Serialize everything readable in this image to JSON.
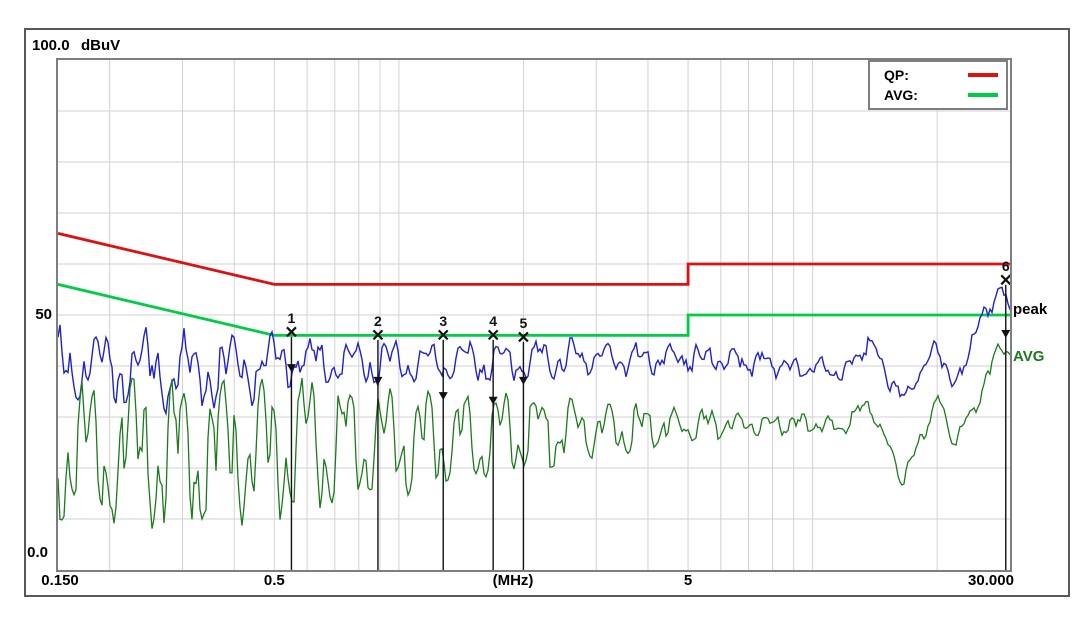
{
  "window": {
    "title": "EMI conducted emission measurement plot"
  },
  "header": {
    "y_max_label": "100.0",
    "unit_label": "dBuV"
  },
  "legend": {
    "items": [
      {
        "label": "QP:",
        "color": "#dd1111"
      },
      {
        "label": "AVG:",
        "color": "#00cc44"
      }
    ]
  },
  "side_labels": {
    "peak": {
      "text": "peak",
      "color": "#000000"
    },
    "avg": {
      "text": "AVG",
      "color": "#1b7a1b"
    }
  },
  "chart_data": {
    "type": "line",
    "title": "",
    "xlabel": "(MHz)",
    "ylabel": "dBuV",
    "x_axis": {
      "scale": "log",
      "min_mhz": 0.15,
      "max_mhz": 30,
      "tick_labels": [
        {
          "f": 0.15,
          "label": "0.150"
        },
        {
          "f": 0.5,
          "label": "0.5"
        },
        {
          "f": 5,
          "label": "5"
        },
        {
          "f": 30,
          "label": "30.000"
        }
      ],
      "unit_label": "(MHz)",
      "gridlines_mhz": [
        0.2,
        0.3,
        0.4,
        0.5,
        0.6,
        0.7,
        0.8,
        0.9,
        1,
        2,
        3,
        4,
        5,
        6,
        7,
        8,
        9,
        10,
        20
      ]
    },
    "y_axis": {
      "min_db": 0,
      "max_db": 100,
      "tick_labels": [
        {
          "db": 100,
          "label": "100.0"
        },
        {
          "db": 50,
          "label": "50"
        },
        {
          "db": 0,
          "label": "0.0"
        }
      ],
      "gridlines_db": [
        10,
        20,
        30,
        40,
        50,
        60,
        70,
        80,
        90
      ]
    },
    "grid_color": "#d2d2d2",
    "limit_lines": [
      {
        "name": "QP limit",
        "color": "#dd1111",
        "points_mhz_db": [
          [
            0.15,
            66
          ],
          [
            0.5,
            56
          ],
          [
            5,
            56
          ],
          [
            5,
            60
          ],
          [
            30,
            60
          ]
        ]
      },
      {
        "name": "AVG limit",
        "color": "#00cc44",
        "points_mhz_db": [
          [
            0.15,
            56
          ],
          [
            0.5,
            46
          ],
          [
            5,
            46
          ],
          [
            5,
            50
          ],
          [
            30,
            50
          ]
        ]
      }
    ],
    "traces": [
      {
        "name": "peak",
        "color": "#2020cc",
        "width": 1.4,
        "envelope_f_center_amp": [
          [
            0.15,
            41,
            7
          ],
          [
            0.25,
            38.5,
            8.5
          ],
          [
            0.4,
            39,
            7.5
          ],
          [
            0.55,
            41,
            5
          ],
          [
            1,
            40.5,
            4.5
          ],
          [
            2,
            41,
            4
          ],
          [
            3.5,
            41.5,
            3.2
          ],
          [
            5,
            41.5,
            2.6
          ],
          [
            7,
            41,
            2.4
          ],
          [
            10,
            39.5,
            2.0
          ],
          [
            12,
            38.5,
            1.9
          ],
          [
            13.6,
            45,
            1.8
          ],
          [
            16.6,
            33,
            1.5
          ],
          [
            20,
            44,
            1.6
          ],
          [
            22,
            35.5,
            1.8
          ],
          [
            24.5,
            46,
            1.5
          ],
          [
            28.5,
            55.5,
            1.2
          ],
          [
            30,
            50.5,
            1
          ]
        ],
        "gen": {
          "seed": 7,
          "phase1": 1.7,
          "phase2": 0.4,
          "p1_start": 46,
          "p1_end": 24,
          "p2": 12.5,
          "w1": 0.6,
          "w2": 0.42,
          "jitter": 0.22,
          "sharp": 0.9,
          "fuzz": 0.85
        }
      },
      {
        "name": "AVG",
        "color": "#1b7a1b",
        "width": 1.3,
        "envelope_f_center_amp": [
          [
            0.15,
            24,
            13
          ],
          [
            0.3,
            22.5,
            14
          ],
          [
            0.5,
            24,
            13.5
          ],
          [
            0.9,
            25,
            10.5
          ],
          [
            1.4,
            25.5,
            9
          ],
          [
            2,
            27,
            8
          ],
          [
            3,
            27.5,
            5.5
          ],
          [
            5,
            28.2,
            3.2
          ],
          [
            7,
            28.6,
            2
          ],
          [
            10,
            28.5,
            1.6
          ],
          [
            12,
            28.3,
            1.5
          ],
          [
            13.6,
            33,
            1.4
          ],
          [
            16.6,
            17.5,
            1.4
          ],
          [
            20,
            33.5,
            1.5
          ],
          [
            22,
            25.5,
            1.6
          ],
          [
            24.5,
            31,
            1.5
          ],
          [
            28.5,
            44.5,
            1.2
          ],
          [
            30,
            42,
            1
          ]
        ],
        "gen": {
          "seed": 13,
          "phase1": 3.6,
          "phase2": 2.0,
          "p1_start": 47,
          "p1_end": 25,
          "p2": 12.9,
          "w1": 0.66,
          "w2": 0.48,
          "jitter": 0.22,
          "sharp": 0.72,
          "fuzz": 0.55
        }
      }
    ],
    "markers": [
      {
        "label": "1",
        "freq_mhz": 0.55,
        "peak_dbuv": 46.7,
        "avg_dbuv": 38.8
      },
      {
        "label": "2",
        "freq_mhz": 0.89,
        "peak_dbuv": 46.1,
        "avg_dbuv": 36.3
      },
      {
        "label": "3",
        "freq_mhz": 1.28,
        "peak_dbuv": 46.1,
        "avg_dbuv": 33.3
      },
      {
        "label": "4",
        "freq_mhz": 1.69,
        "peak_dbuv": 46.1,
        "avg_dbuv": 32.4
      },
      {
        "label": "5",
        "freq_mhz": 2.0,
        "peak_dbuv": 45.7,
        "avg_dbuv": 36.3
      },
      {
        "label": "6",
        "freq_mhz": 29.3,
        "peak_dbuv": 56.9,
        "avg_dbuv": 45.5
      }
    ],
    "marker_color": "#111111",
    "legend_position": "top-right"
  }
}
